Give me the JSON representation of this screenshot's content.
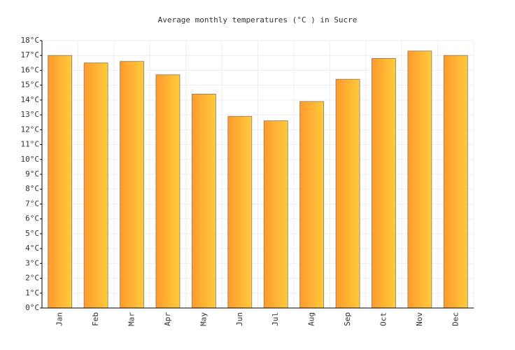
{
  "chart_data": {
    "type": "bar",
    "title": "Average monthly temperatures (°C ) in Sucre",
    "categories": [
      "Jan",
      "Feb",
      "Mar",
      "Apr",
      "May",
      "Jun",
      "Jul",
      "Aug",
      "Sep",
      "Oct",
      "Nov",
      "Dec"
    ],
    "values": [
      17.0,
      16.5,
      16.6,
      15.7,
      14.4,
      12.9,
      12.6,
      13.9,
      15.4,
      16.8,
      17.3,
      17.0
    ],
    "color": "#ffb031",
    "ylim": [
      0,
      18
    ],
    "yticks": [
      {
        "value": 0,
        "label": "0°C"
      },
      {
        "value": 1,
        "label": "1°C"
      },
      {
        "value": 2,
        "label": "2°C"
      },
      {
        "value": 3,
        "label": "3°C"
      },
      {
        "value": 4,
        "label": "4°C"
      },
      {
        "value": 5,
        "label": "5°C"
      },
      {
        "value": 6,
        "label": "6°C"
      },
      {
        "value": 7,
        "label": "7°C"
      },
      {
        "value": 8,
        "label": "8°C"
      },
      {
        "value": 9,
        "label": "9°C"
      },
      {
        "value": 10,
        "label": "10°C"
      },
      {
        "value": 11,
        "label": "11°C"
      },
      {
        "value": 12,
        "label": "12°C"
      },
      {
        "value": 13,
        "label": "13°C"
      },
      {
        "value": 14,
        "label": "14°C"
      },
      {
        "value": 15,
        "label": "15°C"
      },
      {
        "value": 16,
        "label": "16°C"
      },
      {
        "value": 17,
        "label": "17°C"
      },
      {
        "value": 18,
        "label": "18°C"
      }
    ],
    "grid": true
  }
}
